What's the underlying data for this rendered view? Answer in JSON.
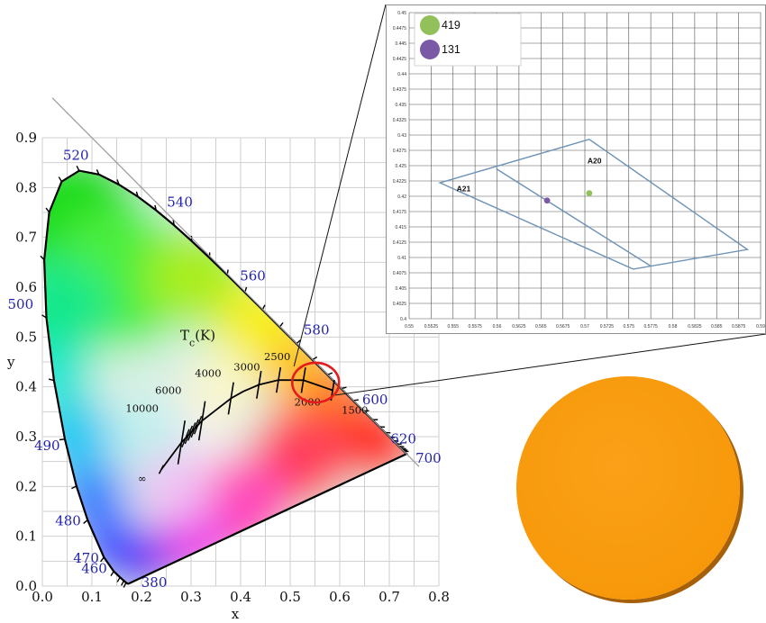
{
  "chart_data": [
    {
      "type": "scatter",
      "title": "",
      "xlabel": "x",
      "ylabel": "y",
      "xlim": [
        0.0,
        0.8
      ],
      "ylim": [
        0.0,
        0.9
      ],
      "x_ticks": [
        "0.0",
        "0.1",
        "0.2",
        "0.3",
        "0.4",
        "0.5",
        "0.6",
        "0.7",
        "0.8"
      ],
      "y_ticks": [
        "0.0",
        "0.1",
        "0.2",
        "0.3",
        "0.4",
        "0.5",
        "0.6",
        "0.7",
        "0.8",
        "0.9"
      ],
      "grid": true,
      "spectral_locus": {
        "points": [
          [
            0.1741,
            0.005
          ],
          [
            0.1738,
            0.0049
          ],
          [
            0.1733,
            0.0048
          ],
          [
            0.172,
            0.0048
          ],
          [
            0.1689,
            0.0069
          ],
          [
            0.1644,
            0.0109
          ],
          [
            0.1566,
            0.0177
          ],
          [
            0.144,
            0.0297
          ],
          [
            0.1241,
            0.0578
          ],
          [
            0.0913,
            0.1327
          ],
          [
            0.0687,
            0.2007
          ],
          [
            0.0454,
            0.295
          ],
          [
            0.0235,
            0.4127
          ],
          [
            0.0082,
            0.5384
          ],
          [
            0.0039,
            0.6548
          ],
          [
            0.0139,
            0.7502
          ],
          [
            0.0389,
            0.812
          ],
          [
            0.0743,
            0.8338
          ],
          [
            0.1142,
            0.8262
          ],
          [
            0.1547,
            0.8059
          ],
          [
            0.1929,
            0.7816
          ],
          [
            0.2296,
            0.7543
          ],
          [
            0.2658,
            0.7243
          ],
          [
            0.3016,
            0.6923
          ],
          [
            0.3373,
            0.6589
          ],
          [
            0.3731,
            0.6245
          ],
          [
            0.4087,
            0.5896
          ],
          [
            0.4441,
            0.5547
          ],
          [
            0.4788,
            0.5202
          ],
          [
            0.5125,
            0.4866
          ],
          [
            0.5448,
            0.4544
          ],
          [
            0.5752,
            0.4242
          ],
          [
            0.6029,
            0.3965
          ],
          [
            0.627,
            0.3725
          ],
          [
            0.6482,
            0.3514
          ],
          [
            0.6658,
            0.334
          ],
          [
            0.6801,
            0.3197
          ],
          [
            0.6915,
            0.3083
          ],
          [
            0.7006,
            0.2993
          ],
          [
            0.7079,
            0.292
          ],
          [
            0.714,
            0.2859
          ],
          [
            0.719,
            0.2809
          ],
          [
            0.723,
            0.277
          ],
          [
            0.726,
            0.274
          ],
          [
            0.7283,
            0.2717
          ],
          [
            0.7347,
            0.2653
          ]
        ],
        "wavelength_labels": [
          {
            "nm": "380",
            "x": 0.1741,
            "y": 0.005
          },
          {
            "nm": "460",
            "x": 0.144,
            "y": 0.0297
          },
          {
            "nm": "470",
            "x": 0.1241,
            "y": 0.0578
          },
          {
            "nm": "480",
            "x": 0.0913,
            "y": 0.1327
          },
          {
            "nm": "490",
            "x": 0.0454,
            "y": 0.295
          },
          {
            "nm": "500",
            "x": 0.0082,
            "y": 0.5384
          },
          {
            "nm": "520",
            "x": 0.0743,
            "y": 0.8338
          },
          {
            "nm": "540",
            "x": 0.2296,
            "y": 0.7543
          },
          {
            "nm": "560",
            "x": 0.3731,
            "y": 0.6245
          },
          {
            "nm": "580",
            "x": 0.5125,
            "y": 0.4866
          },
          {
            "nm": "600",
            "x": 0.627,
            "y": 0.3725
          },
          {
            "nm": "620",
            "x": 0.6915,
            "y": 0.3083
          },
          {
            "nm": "700",
            "x": 0.7347,
            "y": 0.2653
          }
        ]
      },
      "planckian_locus": {
        "label": "T_c(K)",
        "points": [
          [
            0.5857,
            0.3931
          ],
          [
            0.5267,
            0.4133
          ],
          [
            0.4764,
            0.4137
          ],
          [
            0.4369,
            0.4041
          ],
          [
            0.4053,
            0.3908
          ],
          [
            0.3805,
            0.3768
          ],
          [
            0.3221,
            0.3318
          ],
          [
            0.2807,
            0.2884
          ],
          [
            0.24,
            0.234
          ]
        ],
        "cct_labels": [
          {
            "text": "1500",
            "x": 0.5857,
            "y": 0.3931
          },
          {
            "text": "2000",
            "x": 0.5267,
            "y": 0.4133
          },
          {
            "text": "2500",
            "x": 0.4764,
            "y": 0.4137
          },
          {
            "text": "3000",
            "x": 0.4369,
            "y": 0.4041
          },
          {
            "text": "4000",
            "x": 0.3805,
            "y": 0.3768
          },
          {
            "text": "6000",
            "x": 0.3221,
            "y": 0.3318
          },
          {
            "text": "10000",
            "x": 0.2807,
            "y": 0.2884
          },
          {
            "text": "∞",
            "x": 0.24,
            "y": 0.234
          }
        ]
      },
      "highlight_region": {
        "x": 0.555,
        "y": 0.405,
        "color": "#e51c1c"
      }
    },
    {
      "type": "scatter",
      "title": "",
      "xlim": [
        0.55,
        0.59
      ],
      "ylim": [
        0.4,
        0.45
      ],
      "x_ticks": [
        "0.55",
        "0.5525",
        "0.555",
        "0.5575",
        "0.56",
        "0.5625",
        "0.565",
        "0.5675",
        "0.57",
        "0.5725",
        "0.575",
        "0.5775",
        "0.58",
        "0.5825",
        "0.585",
        "0.5875",
        "0.59"
      ],
      "y_ticks": [
        "0.4",
        "0.4025",
        "0.405",
        "0.4075",
        "0.41",
        "0.4125",
        "0.415",
        "0.4175",
        "0.42",
        "0.4225",
        "0.425",
        "0.4275",
        "0.43",
        "0.4325",
        "0.435",
        "0.4375",
        "0.44",
        "0.4425",
        "0.445",
        "0.4475",
        "0.45"
      ],
      "grid": true,
      "legend_position": "top-left",
      "series": [
        {
          "name": "419",
          "color": "#92c05a",
          "points": [
            [
              0.5705,
              0.4205
            ]
          ]
        },
        {
          "name": "131",
          "color": "#7a5aa6",
          "points": [
            [
              0.5657,
              0.4193
            ]
          ]
        }
      ],
      "boxes": [
        {
          "label": "A20",
          "color": "#6e93b6",
          "points": [
            [
              0.5535,
              0.4222
            ],
            [
              0.5705,
              0.4293
            ],
            [
              0.5885,
              0.4113
            ],
            [
              0.5755,
              0.4081
            ]
          ]
        },
        {
          "label": "A21",
          "color": "#6e93b6",
          "points": [
            [
              0.5599,
              0.4245
            ],
            [
              0.5775,
              0.4086
            ]
          ]
        }
      ]
    }
  ],
  "swatch": {
    "name": "chromaticity-color-swatch",
    "color": "#f7990a"
  }
}
